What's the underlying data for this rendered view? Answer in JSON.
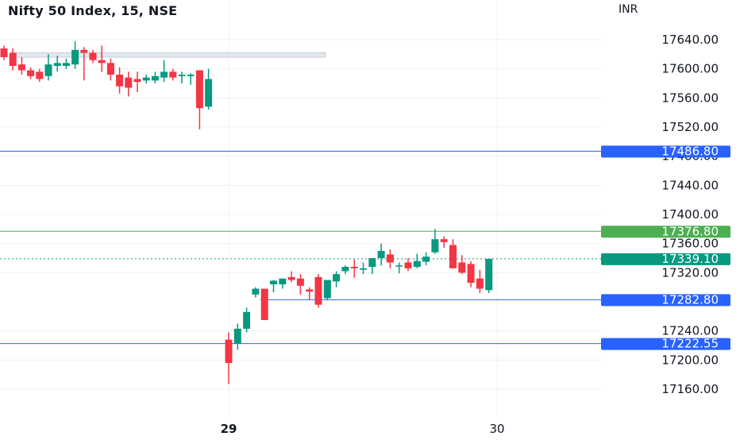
{
  "header": {
    "title": "Nifty 50 Index, 15, NSE",
    "currency": "INR"
  },
  "chart_data": {
    "type": "candlestick",
    "title": "Nifty 50 Index, 15, NSE",
    "ylabel": "INR",
    "ylim": [
      17140,
      17680
    ],
    "y_ticks": [
      17640,
      17600,
      17560,
      17520,
      17480,
      17440,
      17400,
      17360,
      17320,
      17240,
      17200,
      17160
    ],
    "y_tick_labels": [
      "17640.00",
      "17600.00",
      "17560.00",
      "17520.00",
      "17480.00",
      "17440.00",
      "17400.00",
      "17360.00",
      "17320.00",
      "17240.00",
      "17200.00",
      "17160.00"
    ],
    "x_tick_labels": [
      "29",
      "30"
    ],
    "grid": true,
    "colors": {
      "up": "#089981",
      "down": "#f23645",
      "hline": "#2962ff",
      "hline_green": "#4caf50",
      "price_label": "#089981",
      "grid": "#eef0f3"
    },
    "candles_previous_session": [
      {
        "o": 17628,
        "h": 17632,
        "l": 17612,
        "c": 17616
      },
      {
        "o": 17622,
        "h": 17628,
        "l": 17598,
        "c": 17604
      },
      {
        "o": 17606,
        "h": 17616,
        "l": 17592,
        "c": 17598
      },
      {
        "o": 17598,
        "h": 17602,
        "l": 17586,
        "c": 17590
      },
      {
        "o": 17596,
        "h": 17600,
        "l": 17582,
        "c": 17586
      },
      {
        "o": 17590,
        "h": 17620,
        "l": 17584,
        "c": 17606
      },
      {
        "o": 17604,
        "h": 17618,
        "l": 17596,
        "c": 17608
      },
      {
        "o": 17604,
        "h": 17614,
        "l": 17600,
        "c": 17608
      },
      {
        "o": 17606,
        "h": 17638,
        "l": 17600,
        "c": 17626
      },
      {
        "o": 17626,
        "h": 17630,
        "l": 17584,
        "c": 17622
      },
      {
        "o": 17622,
        "h": 17626,
        "l": 17608,
        "c": 17612
      },
      {
        "o": 17612,
        "h": 17632,
        "l": 17596,
        "c": 17608
      },
      {
        "o": 17608,
        "h": 17614,
        "l": 17584,
        "c": 17592
      },
      {
        "o": 17592,
        "h": 17602,
        "l": 17566,
        "c": 17576
      },
      {
        "o": 17588,
        "h": 17596,
        "l": 17562,
        "c": 17574
      },
      {
        "o": 17586,
        "h": 17596,
        "l": 17568,
        "c": 17582
      },
      {
        "o": 17584,
        "h": 17592,
        "l": 17580,
        "c": 17588
      },
      {
        "o": 17584,
        "h": 17596,
        "l": 17580,
        "c": 17590
      },
      {
        "o": 17588,
        "h": 17612,
        "l": 17582,
        "c": 17596
      },
      {
        "o": 17596,
        "h": 17600,
        "l": 17584,
        "c": 17588
      },
      {
        "o": 17590,
        "h": 17596,
        "l": 17580,
        "c": 17592
      },
      {
        "o": 17590,
        "h": 17594,
        "l": 17578,
        "c": 17592
      },
      {
        "o": 17598,
        "h": 17598,
        "l": 17517,
        "c": 17546
      },
      {
        "o": 17548,
        "h": 17600,
        "l": 17544,
        "c": 17586
      }
    ],
    "candles_current_session": [
      {
        "o": 17228,
        "h": 17238,
        "l": 17167,
        "c": 17196
      },
      {
        "o": 17223,
        "h": 17250,
        "l": 17214,
        "c": 17243
      },
      {
        "o": 17243,
        "h": 17272,
        "l": 17238,
        "c": 17266
      },
      {
        "o": 17290,
        "h": 17300,
        "l": 17286,
        "c": 17298
      },
      {
        "o": 17298,
        "h": 17298,
        "l": 17255,
        "c": 17255
      },
      {
        "o": 17304,
        "h": 17310,
        "l": 17293,
        "c": 17309
      },
      {
        "o": 17304,
        "h": 17310,
        "l": 17298,
        "c": 17312
      },
      {
        "o": 17314,
        "h": 17322,
        "l": 17307,
        "c": 17310
      },
      {
        "o": 17312,
        "h": 17318,
        "l": 17290,
        "c": 17302
      },
      {
        "o": 17297,
        "h": 17300,
        "l": 17282,
        "c": 17294
      },
      {
        "o": 17314,
        "h": 17318,
        "l": 17272,
        "c": 17276
      },
      {
        "o": 17285,
        "h": 17304,
        "l": 17282,
        "c": 17310
      },
      {
        "o": 17308,
        "h": 17322,
        "l": 17300,
        "c": 17318
      },
      {
        "o": 17322,
        "h": 17330,
        "l": 17318,
        "c": 17328
      },
      {
        "o": 17328,
        "h": 17338,
        "l": 17313,
        "c": 17326
      },
      {
        "o": 17324,
        "h": 17334,
        "l": 17318,
        "c": 17326
      },
      {
        "o": 17328,
        "h": 17338,
        "l": 17318,
        "c": 17340
      },
      {
        "o": 17340,
        "h": 17360,
        "l": 17330,
        "c": 17350
      },
      {
        "o": 17345,
        "h": 17352,
        "l": 17326,
        "c": 17334
      },
      {
        "o": 17330,
        "h": 17334,
        "l": 17319,
        "c": 17330
      },
      {
        "o": 17334,
        "h": 17340,
        "l": 17322,
        "c": 17326
      },
      {
        "o": 17328,
        "h": 17346,
        "l": 17326,
        "c": 17336
      },
      {
        "o": 17335,
        "h": 17348,
        "l": 17330,
        "c": 17342
      },
      {
        "o": 17348,
        "h": 17380,
        "l": 17346,
        "c": 17366
      },
      {
        "o": 17366,
        "h": 17370,
        "l": 17354,
        "c": 17362
      },
      {
        "o": 17358,
        "h": 17366,
        "l": 17326,
        "c": 17326
      },
      {
        "o": 17334,
        "h": 17344,
        "l": 17318,
        "c": 17320
      },
      {
        "o": 17332,
        "h": 17336,
        "l": 17300,
        "c": 17306
      },
      {
        "o": 17312,
        "h": 17324,
        "l": 17292,
        "c": 17298
      },
      {
        "o": 17296,
        "h": 17330,
        "l": 17292,
        "c": 17339
      }
    ],
    "horizontal_levels": [
      {
        "value": 17486.8,
        "label": "17486.80",
        "color": "#2962ff",
        "style": "solid"
      },
      {
        "value": 17376.8,
        "label": "17376.80",
        "color": "#4caf50",
        "style": "solid"
      },
      {
        "value": 17339.1,
        "label": "17339.10",
        "color": "#089981",
        "style": "dotted"
      },
      {
        "value": 17282.8,
        "label": "17282.80",
        "color": "#2962ff",
        "style": "solid"
      },
      {
        "value": 17222.55,
        "label": "17222.55",
        "color": "#2962ff",
        "style": "solid"
      }
    ],
    "zone": {
      "from": 17616,
      "to": 17622,
      "color": "#e3e8f0"
    }
  }
}
